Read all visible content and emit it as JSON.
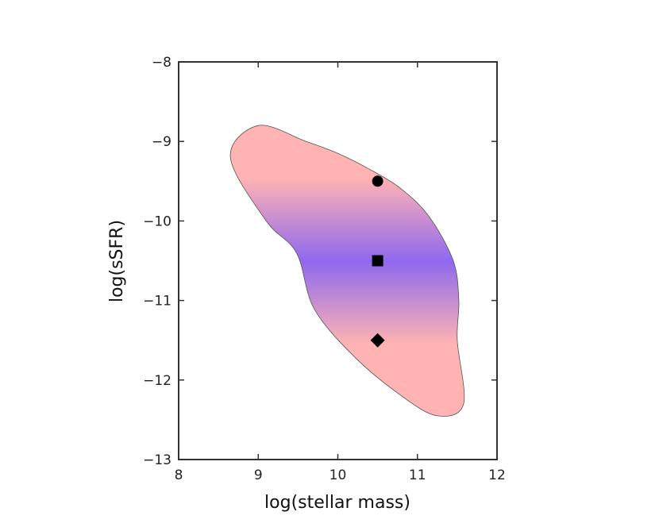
{
  "chart_data": {
    "type": "scatter",
    "title": "",
    "xlabel": "log(stellar mass)",
    "ylabel": "log(sSFR)",
    "xlim": [
      8,
      12
    ],
    "ylim": [
      -13,
      -8
    ],
    "xticks": [
      8,
      9,
      10,
      11,
      12
    ],
    "yticks": [
      -13,
      -12,
      -11,
      -10,
      -9,
      -8
    ],
    "xtick_labels": [
      "8",
      "9",
      "10",
      "11",
      "12"
    ],
    "ytick_labels": [
      "−13",
      "−12",
      "−11",
      "−10",
      "−9",
      "−8"
    ],
    "grid": false,
    "legend": "none",
    "region": {
      "shape": "closed filled contour",
      "fill_gradient": "vertical: pink (#ffb3b3) at edges, blue-violet (#8f68ee) at log(sSFR) ≈ −10.5",
      "outline": [
        [
          9.0,
          -8.8
        ],
        [
          9.6,
          -9.0
        ],
        [
          10.0,
          -9.15
        ],
        [
          10.4,
          -9.35
        ],
        [
          10.8,
          -9.6
        ],
        [
          11.15,
          -9.95
        ],
        [
          11.45,
          -10.5
        ],
        [
          11.52,
          -11.0
        ],
        [
          11.5,
          -11.5
        ],
        [
          11.58,
          -12.3
        ],
        [
          11.25,
          -12.45
        ],
        [
          10.8,
          -12.2
        ],
        [
          10.2,
          -11.7
        ],
        [
          9.7,
          -11.1
        ],
        [
          9.48,
          -10.4
        ],
        [
          9.1,
          -10.0
        ],
        [
          8.65,
          -9.2
        ]
      ]
    },
    "series": [
      {
        "marker": "circle",
        "x": 10.5,
        "y": -9.5
      },
      {
        "marker": "square",
        "x": 10.5,
        "y": -10.5
      },
      {
        "marker": "diamond",
        "x": 10.5,
        "y": -11.5
      }
    ]
  }
}
